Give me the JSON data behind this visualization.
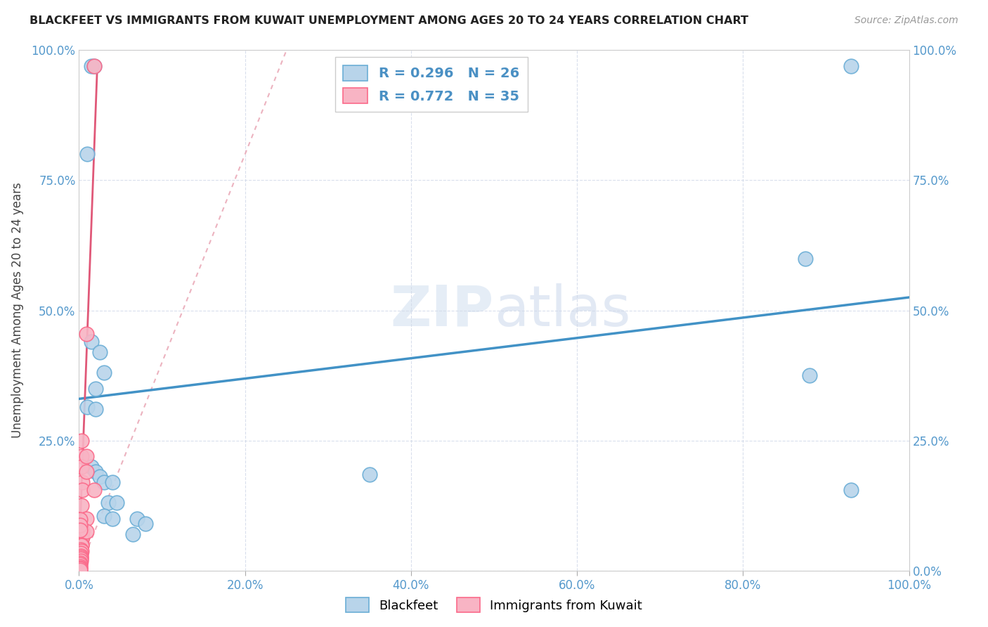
{
  "title": "BLACKFEET VS IMMIGRANTS FROM KUWAIT UNEMPLOYMENT AMONG AGES 20 TO 24 YEARS CORRELATION CHART",
  "source": "Source: ZipAtlas.com",
  "ylabel": "Unemployment Among Ages 20 to 24 years",
  "x_tick_labels": [
    "0.0%",
    "20.0%",
    "40.0%",
    "60.0%",
    "80.0%",
    "100.0%"
  ],
  "y_tick_labels_left": [
    "",
    "25.0%",
    "50.0%",
    "75.0%",
    "100.0%"
  ],
  "y_tick_labels_right": [
    "100.0%",
    "75.0%",
    "50.0%",
    "25.0%",
    "0.0%"
  ],
  "xlim": [
    0,
    1.0
  ],
  "ylim": [
    0,
    1.0
  ],
  "watermark": "ZIPatlas",
  "blackfeet_scatter": [
    [
      0.015,
      0.97
    ],
    [
      0.018,
      0.97
    ],
    [
      0.01,
      0.8
    ],
    [
      0.015,
      0.44
    ],
    [
      0.025,
      0.42
    ],
    [
      0.03,
      0.38
    ],
    [
      0.02,
      0.35
    ],
    [
      0.01,
      0.315
    ],
    [
      0.02,
      0.31
    ],
    [
      0.015,
      0.2
    ],
    [
      0.02,
      0.19
    ],
    [
      0.025,
      0.18
    ],
    [
      0.03,
      0.17
    ],
    [
      0.04,
      0.17
    ],
    [
      0.035,
      0.13
    ],
    [
      0.045,
      0.13
    ],
    [
      0.03,
      0.105
    ],
    [
      0.04,
      0.1
    ],
    [
      0.07,
      0.1
    ],
    [
      0.08,
      0.09
    ],
    [
      0.065,
      0.07
    ],
    [
      0.35,
      0.185
    ],
    [
      0.875,
      0.6
    ],
    [
      0.88,
      0.375
    ],
    [
      0.93,
      0.97
    ],
    [
      0.93,
      0.155
    ]
  ],
  "kuwait_scatter": [
    [
      0.003,
      0.25
    ],
    [
      0.003,
      0.22
    ],
    [
      0.003,
      0.2
    ],
    [
      0.004,
      0.17
    ],
    [
      0.004,
      0.155
    ],
    [
      0.003,
      0.125
    ],
    [
      0.003,
      0.08
    ],
    [
      0.004,
      0.075
    ],
    [
      0.004,
      0.065
    ],
    [
      0.003,
      0.06
    ],
    [
      0.003,
      0.05
    ],
    [
      0.003,
      0.048
    ],
    [
      0.002,
      0.04
    ],
    [
      0.003,
      0.038
    ],
    [
      0.002,
      0.033
    ],
    [
      0.002,
      0.028
    ],
    [
      0.002,
      0.025
    ],
    [
      0.002,
      0.022
    ],
    [
      0.002,
      0.018
    ],
    [
      0.001,
      0.015
    ],
    [
      0.001,
      0.012
    ],
    [
      0.001,
      0.008
    ],
    [
      0.001,
      0.005
    ],
    [
      0.001,
      0.003
    ],
    [
      0.001,
      0.001
    ],
    [
      0.009,
      0.455
    ],
    [
      0.009,
      0.22
    ],
    [
      0.009,
      0.19
    ],
    [
      0.009,
      0.1
    ],
    [
      0.009,
      0.075
    ],
    [
      0.018,
      0.97
    ],
    [
      0.018,
      0.155
    ],
    [
      0.001,
      0.098
    ],
    [
      0.001,
      0.088
    ],
    [
      0.001,
      0.078
    ]
  ],
  "blackfeet_line_x": [
    0.0,
    1.0
  ],
  "blackfeet_line_y": [
    0.33,
    0.525
  ],
  "kuwait_solid_line_x": [
    0.0,
    0.022
  ],
  "kuwait_solid_line_y": [
    0.03,
    0.97
  ],
  "kuwait_dotted_line_x": [
    0.0,
    0.25
  ],
  "kuwait_dotted_line_y": [
    0.0,
    1.0
  ],
  "blackfeet_color": "#6baed6",
  "kuwait_color": "#fb6a8a",
  "blackfeet_scatter_fill": "#b8d4ea",
  "kuwait_scatter_fill": "#f8b4c4",
  "blackfeet_line_color": "#4292c6",
  "kuwait_solid_color": "#e05878",
  "kuwait_dotted_color": "#e8a0b0"
}
